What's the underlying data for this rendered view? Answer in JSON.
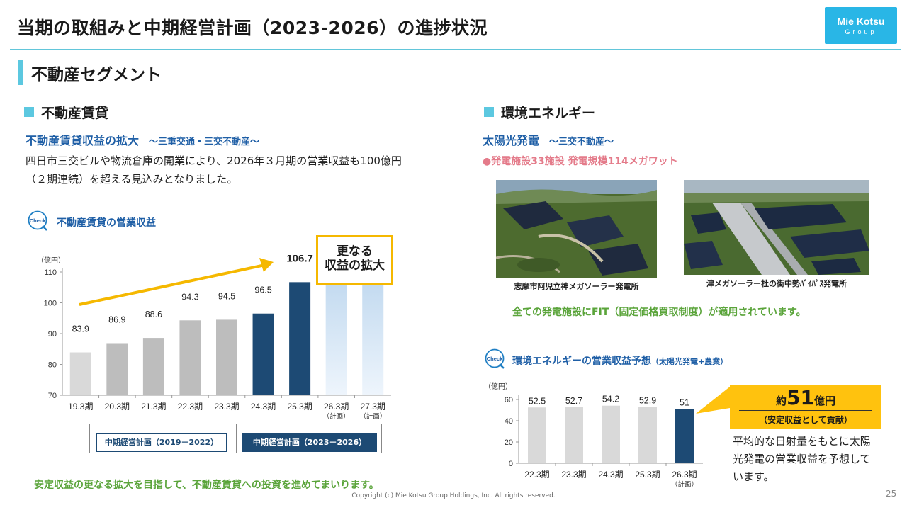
{
  "page_title": "当期の取組みと中期経営計画（2023-2026）の進捗状況",
  "logo": {
    "line1": "Mie Kotsu",
    "line2": "Group"
  },
  "segment_title": "不動産セグメント",
  "left": {
    "heading": "不動産賃貸",
    "subheading": "不動産賃貸収益の拡大",
    "subheading_note": "～三重交通・三交不動産～",
    "body_line1": "四日市三交ビルや物流倉庫の開業により、2026年３月期の営業収益も100億円",
    "body_line2": "（２期連続）を超える見込みとなりました。",
    "check_label": "不動産賃貸の営業収益",
    "check_icon_text": "Check",
    "callout_line1": "更なる",
    "callout_line2": "収益の拡大",
    "plan1": "中期経営計画（2019－2022）",
    "plan2": "中期経営計画（2023－2026）",
    "footer_msg": "安定収益の更なる拡大を目指して、不動産賃貸への投資を進めてまいります。"
  },
  "right": {
    "heading": "環境エネルギー",
    "subheading": "太陽光発電",
    "subheading_note": "～三交不動産～",
    "bullet": "●発電施設33施設 発電規模114メガワット",
    "photo1_caption": "志摩市阿児立神メガソーラー発電所",
    "photo2_caption": "津メガソーラー杜の街中勢ﾊﾞｲﾊﾟｽ発電所",
    "fit_note": "全ての発電施設にFIT（固定価格買取制度）が適用されています。",
    "check_label": "環境エネルギーの営業収益予想",
    "check_label_small": "（太陽光発電+農業）",
    "check_icon_text": "Check",
    "callout_prefix": "約",
    "callout_value": "51",
    "callout_suffix": "億円",
    "callout_sub": "（安定収益として貢献）",
    "note_line1": "平均的な日射量をもとに太陽",
    "note_line2": "光発電の営業収益を予想して",
    "note_line3": "います。"
  },
  "footer": "Copyright (c) Mie Kotsu Group Holdings, Inc. All rights reserved.",
  "page_number": "25",
  "colors": {
    "accent": "#5cc8e0",
    "navy": "#1d4a74",
    "gray": "#bdbdbd",
    "light_gray": "#d9d9d9",
    "yellow": "#ffc20e",
    "green": "#5aa43a",
    "pink": "#e47b8a"
  },
  "chart_data": [
    {
      "type": "bar",
      "ylabel": "（億円）",
      "ylim": [
        70,
        110
      ],
      "yticks": [
        70,
        80,
        90,
        100,
        110
      ],
      "categories": [
        "19.3期",
        "20.3期",
        "21.3期",
        "22.3期",
        "23.3期",
        "24.3期",
        "25.3期",
        "26.3期",
        "27.3期"
      ],
      "category_notes": [
        "",
        "",
        "",
        "",
        "",
        "",
        "",
        "（計画）",
        "（計画）"
      ],
      "values": [
        83.9,
        86.9,
        88.6,
        94.3,
        94.5,
        96.5,
        106.7,
        null,
        null
      ],
      "labels": [
        "83.9",
        "86.9",
        "88.6",
        "94.3",
        "94.5",
        "96.5",
        "106.7",
        "",
        ""
      ],
      "bar_styles": [
        "light",
        "gray",
        "gray",
        "gray",
        "gray",
        "navy",
        "navy",
        "plan",
        "plan"
      ]
    },
    {
      "type": "bar",
      "ylabel": "（億円）",
      "ylim": [
        0,
        60
      ],
      "yticks": [
        0,
        20,
        40,
        60
      ],
      "categories": [
        "22.3期",
        "23.3期",
        "24.3期",
        "25.3期",
        "26.3期"
      ],
      "category_notes": [
        "",
        "",
        "",
        "",
        "（計画）"
      ],
      "values": [
        52.5,
        52.7,
        54.2,
        52.9,
        51
      ],
      "labels": [
        "52.5",
        "52.7",
        "54.2",
        "52.9",
        "51"
      ],
      "bar_styles": [
        "light",
        "light",
        "light",
        "light",
        "navy"
      ]
    }
  ]
}
